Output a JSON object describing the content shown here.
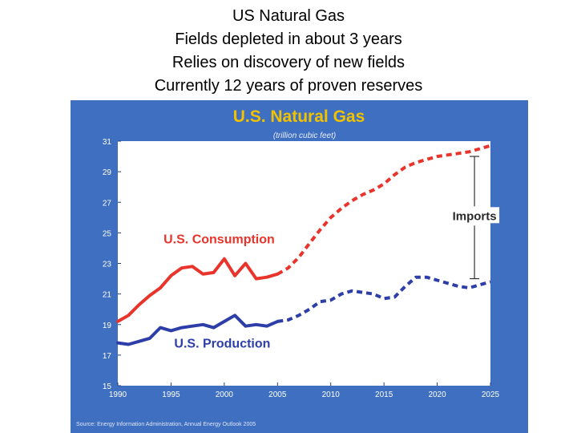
{
  "slide": {
    "title_lines": [
      "US Natural Gas",
      "Fields depleted in about 3 years",
      "Relies on discovery of new fields",
      "Currently 12 years of proven reserves"
    ]
  },
  "colors": {
    "panel_bg": "#3f6fc0",
    "plot_bg": "#ffffff",
    "title": "#f2c200",
    "consumption": "#e8342b",
    "production": "#2d3ea8",
    "imports_bracket": "#333333"
  },
  "chart_data": {
    "type": "line",
    "title": "U.S. Natural Gas",
    "subtitle": "(trillion cubic feet)",
    "xlabel": "",
    "ylabel": "",
    "xlim": [
      1990,
      2025
    ],
    "ylim": [
      15,
      31
    ],
    "x_ticks": [
      "1990",
      "1995",
      "2000",
      "2005",
      "2010",
      "2015",
      "2020",
      "2025"
    ],
    "y_ticks": [
      "15",
      "17",
      "19",
      "21",
      "23",
      "25",
      "27",
      "29",
      "31"
    ],
    "grid": false,
    "historical_end": 2005,
    "series": [
      {
        "name": "U.S. Consumption",
        "label_anchor_x": 1994.3,
        "label_anchor_y": 24.3,
        "x": [
          1990,
          1991,
          1992,
          1993,
          1994,
          1995,
          1996,
          1997,
          1998,
          1999,
          2000,
          2001,
          2002,
          2003,
          2004,
          2005,
          2006,
          2007,
          2008,
          2009,
          2010,
          2011,
          2012,
          2013,
          2014,
          2015,
          2016,
          2017,
          2018,
          2019,
          2020,
          2021,
          2022,
          2023,
          2024,
          2025
        ],
        "y": [
          19.2,
          19.6,
          20.3,
          20.9,
          21.4,
          22.2,
          22.7,
          22.8,
          22.3,
          22.4,
          23.3,
          22.2,
          23.0,
          22.0,
          22.1,
          22.3,
          22.7,
          23.4,
          24.3,
          25.2,
          26.0,
          26.6,
          27.1,
          27.5,
          27.8,
          28.2,
          28.8,
          29.3,
          29.6,
          29.8,
          30.0,
          30.1,
          30.2,
          30.3,
          30.5,
          30.7
        ]
      },
      {
        "name": "U.S. Production",
        "label_anchor_x": 1995.3,
        "label_anchor_y": 17.5,
        "x": [
          1990,
          1991,
          1992,
          1993,
          1994,
          1995,
          1996,
          1997,
          1998,
          1999,
          2000,
          2001,
          2002,
          2003,
          2004,
          2005,
          2006,
          2007,
          2008,
          2009,
          2010,
          2011,
          2012,
          2013,
          2014,
          2015,
          2016,
          2017,
          2018,
          2019,
          2020,
          2021,
          2022,
          2023,
          2024,
          2025
        ],
        "y": [
          17.8,
          17.7,
          17.9,
          18.1,
          18.8,
          18.6,
          18.8,
          18.9,
          19.0,
          18.8,
          19.2,
          19.6,
          18.9,
          19.0,
          18.9,
          19.2,
          19.3,
          19.6,
          20.0,
          20.5,
          20.6,
          21.0,
          21.2,
          21.1,
          21.0,
          20.7,
          20.8,
          21.5,
          22.1,
          22.1,
          21.9,
          21.7,
          21.5,
          21.4,
          21.6,
          21.8
        ]
      }
    ],
    "annotations": [
      {
        "text": "Imports",
        "x": 2023.5,
        "y_from": 22.0,
        "y_to": 30.0
      }
    ],
    "source": "Source: Energy Information Administration, Annual Energy Outlook 2005"
  }
}
